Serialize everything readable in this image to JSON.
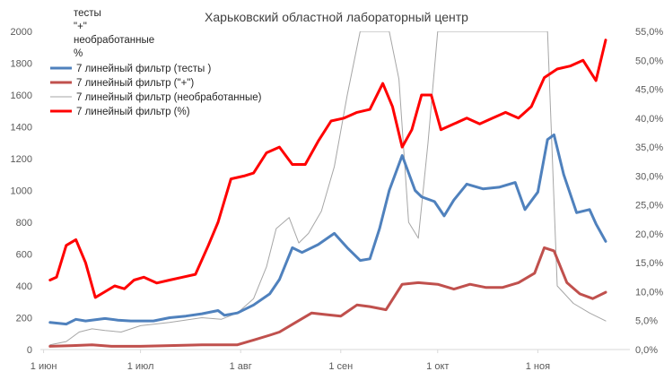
{
  "chart_data": {
    "type": "line",
    "title": "Харьковский областной лабораторный центр",
    "x_ticks": [
      "1 июн",
      "1 июл",
      "1 авг",
      "1 сен",
      "1 окт",
      "1 ноя"
    ],
    "y_left": {
      "ticks": [
        "0",
        "200",
        "400",
        "600",
        "800",
        "1000",
        "1200",
        "1400",
        "1600",
        "1800",
        "2000"
      ],
      "ylim": [
        0,
        2000
      ]
    },
    "y_right": {
      "ticks": [
        "0,0%",
        "5,0%",
        "10,0%",
        "15,0%",
        "20,0%",
        "25,0%",
        "30,0%",
        "35,0%",
        "40,0%",
        "45,0%",
        "50,0%",
        "55,0%"
      ],
      "ylim": [
        0,
        55
      ]
    },
    "axis_title_lines": [
      "тесты",
      "\"+\"",
      "необработанные",
      "%"
    ],
    "legend_position": "top-left",
    "grid": false,
    "series": [
      {
        "name": "7 линейный фильтр (тесты )",
        "axis": "left",
        "color": "#4f81bd",
        "width": 3,
        "x": [
          "2020-06-03",
          "2020-06-08",
          "2020-06-11",
          "2020-06-14",
          "2020-06-20",
          "2020-06-24",
          "2020-06-28",
          "2020-07-01",
          "2020-07-05",
          "2020-07-10",
          "2020-07-15",
          "2020-07-20",
          "2020-07-25",
          "2020-07-27",
          "2020-07-31",
          "2020-08-05",
          "2020-08-10",
          "2020-08-13",
          "2020-08-17",
          "2020-08-20",
          "2020-08-25",
          "2020-08-30",
          "2020-09-03",
          "2020-09-07",
          "2020-09-10",
          "2020-09-13",
          "2020-09-16",
          "2020-09-20",
          "2020-09-24",
          "2020-09-26",
          "2020-09-30",
          "2020-10-03",
          "2020-10-06",
          "2020-10-10",
          "2020-10-15",
          "2020-10-20",
          "2020-10-25",
          "2020-10-28",
          "2020-11-01",
          "2020-11-04",
          "2020-11-06",
          "2020-11-09",
          "2020-11-13",
          "2020-11-17",
          "2020-11-19",
          "2020-11-22"
        ],
        "y": [
          170,
          160,
          190,
          180,
          195,
          185,
          180,
          180,
          180,
          200,
          210,
          225,
          245,
          215,
          230,
          280,
          350,
          440,
          640,
          610,
          660,
          730,
          640,
          560,
          570,
          760,
          1000,
          1220,
          1000,
          960,
          930,
          840,
          940,
          1040,
          1010,
          1020,
          1050,
          880,
          990,
          1320,
          1350,
          1100,
          860,
          880,
          790,
          680
        ]
      },
      {
        "name": "7 линейный фильтр (\"+\")",
        "axis": "left",
        "color": "#c0504d",
        "width": 3,
        "x": [
          "2020-06-03",
          "2020-06-10",
          "2020-06-16",
          "2020-06-22",
          "2020-07-01",
          "2020-07-10",
          "2020-07-20",
          "2020-07-31",
          "2020-08-05",
          "2020-08-10",
          "2020-08-13",
          "2020-08-18",
          "2020-08-23",
          "2020-08-27",
          "2020-09-01",
          "2020-09-06",
          "2020-09-10",
          "2020-09-15",
          "2020-09-20",
          "2020-09-25",
          "2020-10-01",
          "2020-10-06",
          "2020-10-11",
          "2020-10-16",
          "2020-10-21",
          "2020-10-26",
          "2020-10-31",
          "2020-11-03",
          "2020-11-06",
          "2020-11-10",
          "2020-11-14",
          "2020-11-18",
          "2020-11-22"
        ],
        "y": [
          20,
          25,
          30,
          20,
          20,
          25,
          30,
          30,
          60,
          90,
          110,
          170,
          230,
          220,
          210,
          280,
          270,
          250,
          410,
          420,
          410,
          380,
          410,
          390,
          390,
          420,
          480,
          640,
          620,
          420,
          350,
          320,
          360
        ]
      },
      {
        "name": "7 линейный фильтр (необработанные)",
        "axis": "left",
        "color": "#a6a6a6",
        "width": 1,
        "x": [
          "2020-06-03",
          "2020-06-08",
          "2020-06-12",
          "2020-06-16",
          "2020-06-20",
          "2020-06-25",
          "2020-07-01",
          "2020-07-10",
          "2020-07-20",
          "2020-07-26",
          "2020-07-31",
          "2020-08-05",
          "2020-08-09",
          "2020-08-12",
          "2020-08-16",
          "2020-08-19",
          "2020-08-22",
          "2020-08-26",
          "2020-08-30",
          "2020-09-03",
          "2020-09-07",
          "2020-09-10",
          "2020-09-13",
          "2020-09-16",
          "2020-09-19",
          "2020-09-22",
          "2020-09-25",
          "2020-09-28",
          "2020-10-01",
          "2020-10-04",
          "2020-10-08",
          "2020-10-13",
          "2020-10-18",
          "2020-10-23",
          "2020-10-28",
          "2020-11-02",
          "2020-11-04",
          "2020-11-07",
          "2020-11-12",
          "2020-11-17",
          "2020-11-22"
        ],
        "y": [
          30,
          50,
          110,
          130,
          120,
          110,
          150,
          170,
          200,
          190,
          230,
          320,
          520,
          760,
          830,
          670,
          730,
          870,
          1150,
          1600,
          2000,
          2000,
          2000,
          2000,
          1700,
          800,
          700,
          1300,
          2000,
          2000,
          2000,
          2000,
          2000,
          2000,
          2000,
          2000,
          2000,
          400,
          290,
          230,
          180
        ]
      },
      {
        "name": "7 линейный фильтр (%)",
        "axis": "right",
        "color": "#ff0000",
        "width": 3,
        "x": [
          "2020-06-03",
          "2020-06-05",
          "2020-06-08",
          "2020-06-11",
          "2020-06-14",
          "2020-06-17",
          "2020-06-20",
          "2020-06-23",
          "2020-06-26",
          "2020-06-29",
          "2020-07-02",
          "2020-07-06",
          "2020-07-10",
          "2020-07-14",
          "2020-07-18",
          "2020-07-22",
          "2020-07-25",
          "2020-07-29",
          "2020-08-02",
          "2020-08-05",
          "2020-08-09",
          "2020-08-13",
          "2020-08-17",
          "2020-08-21",
          "2020-08-25",
          "2020-08-29",
          "2020-09-02",
          "2020-09-06",
          "2020-09-10",
          "2020-09-14",
          "2020-09-17",
          "2020-09-20",
          "2020-09-23",
          "2020-09-26",
          "2020-09-29",
          "2020-10-02",
          "2020-10-06",
          "2020-10-10",
          "2020-10-14",
          "2020-10-18",
          "2020-10-22",
          "2020-10-26",
          "2020-10-30",
          "2020-11-03",
          "2020-11-07",
          "2020-11-11",
          "2020-11-15",
          "2020-11-19",
          "2020-11-22"
        ],
        "y": [
          12,
          12.5,
          18,
          19,
          15,
          9,
          10,
          11,
          10.5,
          12,
          12.5,
          11.5,
          12,
          12.5,
          13,
          18,
          22,
          29.5,
          30,
          30.5,
          34,
          35,
          32,
          32,
          36,
          39.5,
          40,
          41,
          41.5,
          46,
          42,
          35,
          38,
          44,
          44,
          38,
          39,
          40,
          39,
          40,
          41,
          40,
          42,
          47,
          48.5,
          49,
          50,
          46.5,
          53.5
        ]
      }
    ]
  }
}
